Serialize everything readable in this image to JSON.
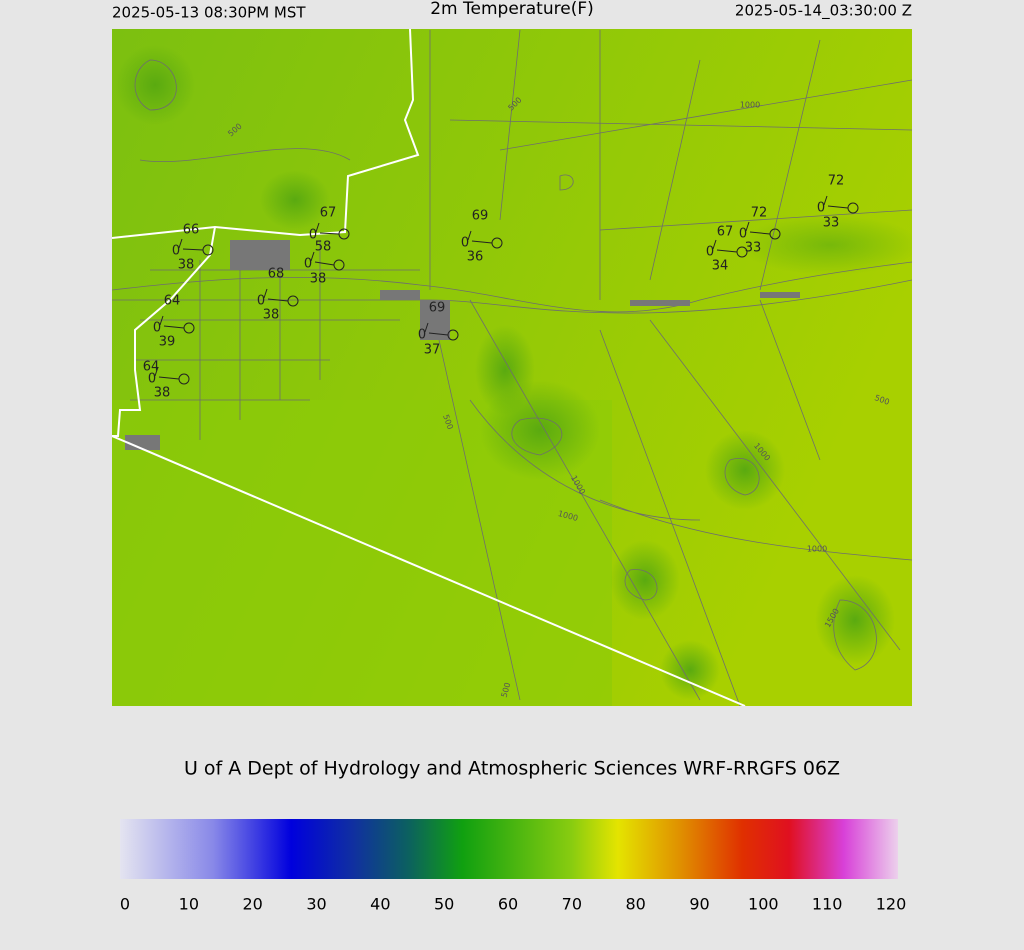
{
  "header": {
    "left": "2025-05-13 08:30PM MST",
    "title": "2m Temperature(F)",
    "right": "2025-05-14_03:30:00 Z"
  },
  "stations": [
    {
      "temp": "66",
      "wind": "0",
      "dew": "38"
    },
    {
      "temp": "67",
      "wind": "0",
      "dew": "58"
    },
    {
      "wind": "0",
      "dew": "38"
    },
    {
      "temp": "68",
      "wind": "0",
      "dew": "38"
    },
    {
      "temp": "64",
      "wind": "0",
      "dew": "39"
    },
    {
      "temp": "64",
      "wind": "0",
      "dew": "38"
    },
    {
      "temp": "69",
      "wind": "0",
      "dew": "36"
    },
    {
      "temp": "69",
      "wind": "0",
      "dew": "37"
    },
    {
      "temp": "67",
      "wind": "0",
      "dew": "34"
    },
    {
      "temp": "72",
      "wind": "0",
      "dew": "33"
    },
    {
      "temp": "72",
      "wind": "0",
      "dew": "33"
    }
  ],
  "contour_labels": [
    "500",
    "500",
    "500",
    "500",
    "500",
    "1000",
    "1000",
    "1000",
    "1000",
    "1000",
    "1500"
  ],
  "credit": "U of A Dept of Hydrology and Atmospheric Sciences WRF-RRGFS 06Z",
  "colorbar": {
    "ticks": [
      0,
      10,
      20,
      30,
      40,
      50,
      60,
      70,
      80,
      90,
      100,
      110,
      120
    ]
  }
}
